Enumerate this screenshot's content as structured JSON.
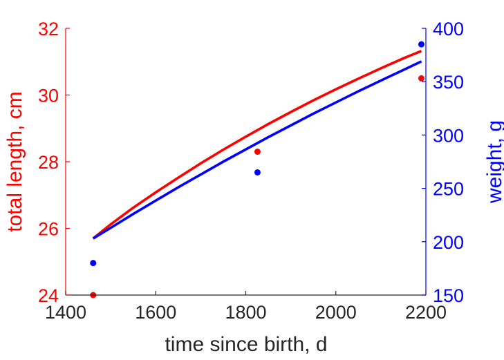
{
  "chart_data": {
    "type": "line",
    "xlabel": "time since birth, d",
    "ylabel_left": "total length, cm",
    "ylabel_right": "weight, g",
    "xlim": [
      1400,
      2200
    ],
    "ylim_left": [
      24,
      32
    ],
    "ylim_right": [
      150,
      400
    ],
    "xticks": [
      1400,
      1600,
      1800,
      2000,
      2200
    ],
    "yticks_left": [
      24,
      26,
      28,
      30,
      32
    ],
    "yticks_right": [
      150,
      200,
      250,
      300,
      350,
      400
    ],
    "grid": false,
    "colors": {
      "left": "#ff0000",
      "right": "#0000ff",
      "axis_x": "#262626"
    },
    "series": [
      {
        "axis": "left",
        "color": "#ff0000",
        "line": {
          "x": [
            1461,
            1500,
            1550,
            1600,
            1650,
            1700,
            1750,
            1800,
            1850,
            1900,
            1950,
            2000,
            2050,
            2100,
            2150,
            2190
          ],
          "y": [
            25.7,
            26.12,
            26.62,
            27.08,
            27.52,
            27.95,
            28.36,
            28.75,
            29.13,
            29.49,
            29.84,
            30.17,
            30.49,
            30.8,
            31.1,
            31.32
          ]
        },
        "points": {
          "x": [
            1461,
            1826,
            2190
          ],
          "y": [
            24.0,
            28.3,
            30.5
          ]
        }
      },
      {
        "axis": "right",
        "color": "#0000ff",
        "line": {
          "x": [
            1461,
            1500,
            1550,
            1600,
            1650,
            1700,
            1750,
            1800,
            1850,
            1900,
            1950,
            2000,
            2050,
            2100,
            2150,
            2190
          ],
          "y": [
            203,
            213,
            226,
            238.5,
            251,
            263,
            275,
            286.5,
            298,
            309,
            320,
            330.5,
            341,
            351,
            361,
            369
          ]
        },
        "points": {
          "x": [
            1461,
            1826,
            2190
          ],
          "y": [
            180,
            265,
            385
          ]
        }
      }
    ]
  }
}
